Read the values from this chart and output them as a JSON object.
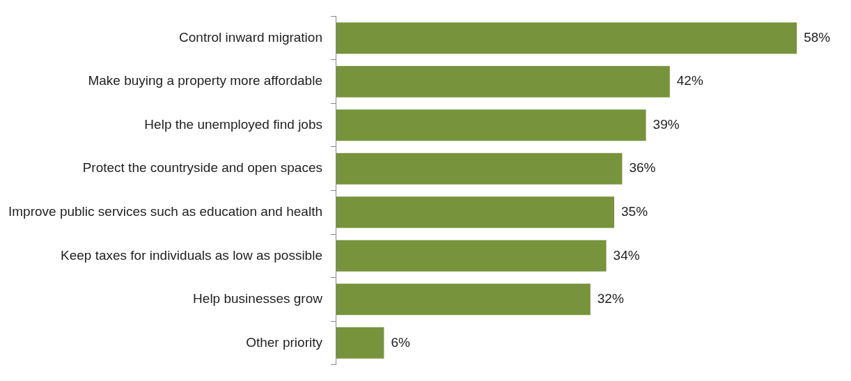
{
  "chart_data": {
    "type": "bar",
    "orientation": "horizontal",
    "categories": [
      "Control inward migration",
      "Make buying a property more affordable",
      "Help the unemployed find jobs",
      "Protect the countryside and open spaces",
      "Improve public services such as education and health",
      "Keep taxes for individuals as low as possible",
      "Help businesses grow",
      "Other priority"
    ],
    "values": [
      58,
      42,
      39,
      36,
      35,
      34,
      32,
      6
    ],
    "value_labels": [
      "58%",
      "42%",
      "39%",
      "36%",
      "35%",
      "34%",
      "32%",
      "6%"
    ],
    "color": "#77933c",
    "tick_labels": "y"
  }
}
